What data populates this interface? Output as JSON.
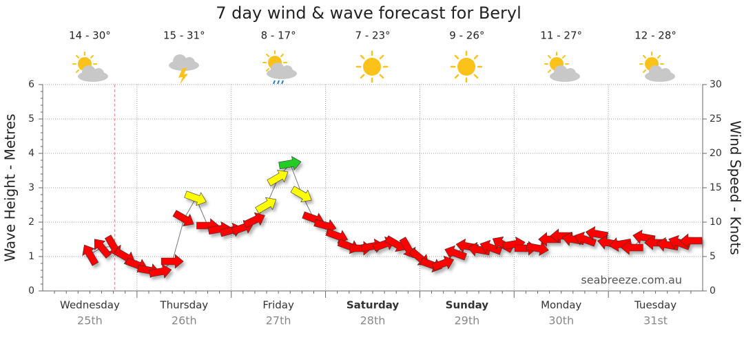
{
  "chart_data": {
    "type": "wind-arrows",
    "title": "7 day wind & wave forecast for Beryl",
    "y_label": "Wave Height - Metres",
    "y2_label": "Wind Speed - Knots",
    "watermark": "seabreeze.com.au",
    "days": [
      {
        "name": "Wednesday",
        "date": "25th",
        "temps": "14 - 30°",
        "bold": false
      },
      {
        "name": "Thursday",
        "date": "26th",
        "temps": "15 - 31°",
        "bold": false
      },
      {
        "name": "Friday",
        "date": "27th",
        "temps": "8 - 17°",
        "bold": false
      },
      {
        "name": "Saturday",
        "date": "28th",
        "temps": "7 - 23°",
        "bold": true
      },
      {
        "name": "Sunday",
        "date": "29th",
        "temps": "9 - 26°",
        "bold": true
      },
      {
        "name": "Monday",
        "date": "30th",
        "temps": "11 - 27°",
        "bold": false
      },
      {
        "name": "Tuesday",
        "date": "31st",
        "temps": "12 - 28°",
        "bold": false
      }
    ],
    "xlim": [
      0,
      168
    ],
    "xticks": [
      24,
      48,
      72,
      96,
      120,
      144
    ],
    "now_line": 18.3,
    "ylim": [
      0,
      6
    ],
    "yticks": [
      0,
      1,
      2,
      3,
      4,
      5,
      6
    ],
    "y2lim": [
      0,
      30
    ],
    "y2ticks": [
      0,
      5,
      10,
      15,
      20,
      25,
      30
    ],
    "grid": true,
    "series": [
      {
        "name": "Wind",
        "axis": "y2",
        "x": [
          12,
          15,
          18,
          21,
          24,
          27,
          30,
          33,
          36,
          39,
          42,
          45,
          48,
          51,
          54,
          57,
          60,
          63,
          66,
          69,
          72,
          75,
          78,
          81,
          84,
          87,
          90,
          93,
          96,
          99,
          102,
          105,
          108,
          111,
          114,
          117,
          120,
          123,
          126,
          129,
          132,
          135,
          138,
          141,
          144,
          147,
          150,
          153,
          156,
          159,
          162,
          165
        ],
        "values": [
          5.3,
          6.3,
          6.5,
          5,
          3.8,
          3,
          2.8,
          4.3,
          10.5,
          13.5,
          9.5,
          9,
          8.8,
          9.2,
          10.3,
          12.5,
          16.5,
          18.5,
          14,
          10.5,
          9.5,
          8,
          6.5,
          6.2,
          6.5,
          6.8,
          6.8,
          6.2,
          4.8,
          3.8,
          4,
          5.5,
          6.5,
          6,
          6.3,
          6.8,
          6.8,
          6.2,
          6.2,
          7.5,
          8,
          7.5,
          7.5,
          8.3,
          7,
          6.8,
          6.3,
          7.8,
          7,
          6.7,
          7,
          7.3
        ],
        "directions": [
          -120,
          -130,
          60,
          30,
          20,
          10,
          -10,
          0,
          30,
          20,
          0,
          -10,
          -15,
          -20,
          -25,
          -30,
          -30,
          -10,
          30,
          20,
          15,
          20,
          20,
          0,
          -10,
          -20,
          30,
          60,
          40,
          20,
          -20,
          -160,
          -170,
          -170,
          -160,
          -150,
          -10,
          0,
          10,
          180,
          180,
          -170,
          -160,
          -170,
          -170,
          170,
          180,
          -170,
          180,
          -170,
          -160,
          180
        ],
        "colors": [
          "#f00",
          "#f00",
          "#f00",
          "#f00",
          "#f00",
          "#f00",
          "#f00",
          "#f00",
          "#f00",
          "#ff0",
          "#f00",
          "#f00",
          "#f00",
          "#f00",
          "#f00",
          "#ff0",
          "#ff0",
          "#2c2",
          "#ff0",
          "#f00",
          "#f00",
          "#f00",
          "#f00",
          "#f00",
          "#f00",
          "#f00",
          "#f00",
          "#f00",
          "#f00",
          "#f00",
          "#f00",
          "#f00",
          "#f00",
          "#f00",
          "#f00",
          "#f00",
          "#f00",
          "#f00",
          "#f00",
          "#f00",
          "#f00",
          "#f00",
          "#f00",
          "#f00",
          "#f00",
          "#f00",
          "#f00",
          "#f00",
          "#f00",
          "#f00",
          "#f00",
          "#f00"
        ]
      }
    ]
  }
}
